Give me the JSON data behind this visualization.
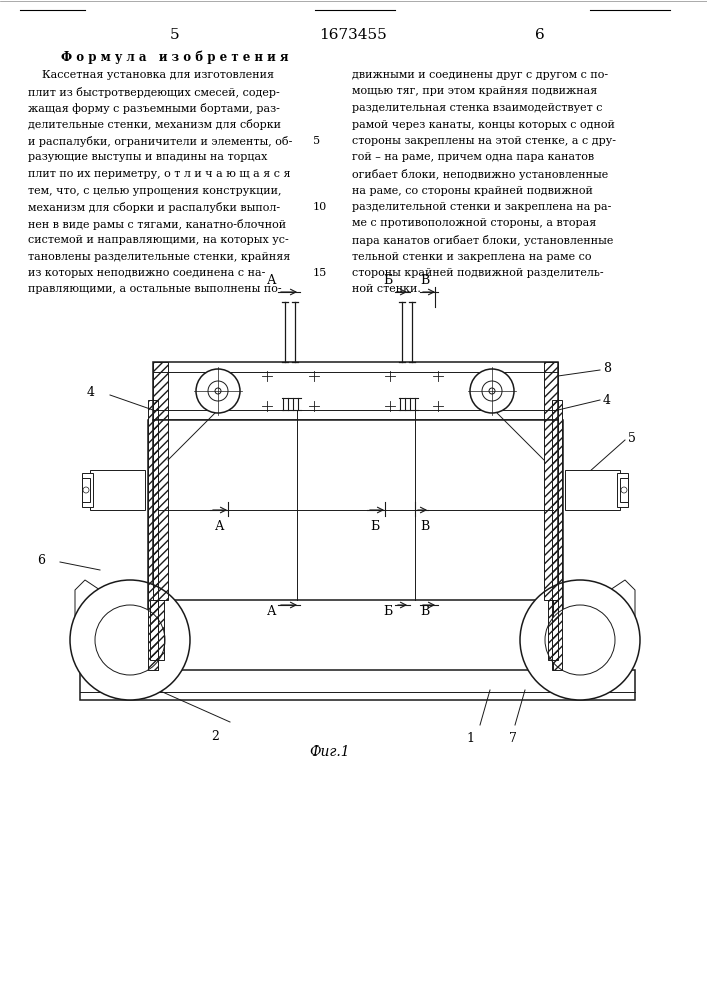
{
  "page_number_left": "5",
  "page_number_center": "1673455",
  "page_number_right": "6",
  "formula_title": "Ф о р м у л а   и з о б р е т е н и я",
  "left_col_lines": [
    "    Кассетная установка для изготовления",
    "плит из быстротвердеющих смесей, содер-",
    "жащая форму с разъемными бортами, раз-",
    "делительные стенки, механизм для сборки",
    "и распалубки, ограничители и элементы, об-",
    "разующие выступы и впадины на торцах",
    "плит по их периметру, о т л и ч а ю щ а я с я",
    "тем, что, с целью упрощения конструкции,",
    "механизм для сборки и распалубки выпол-",
    "нен в виде рамы с тягами, канатно-блочной",
    "системой и направляющими, на которых ус-",
    "тановлены разделительные стенки, крайняя",
    "из которых неподвижно соединена с на-",
    "правляющими, а остальные выполнены по-"
  ],
  "line_num": "15",
  "right_col_lines": [
    "движными и соединены друг с другом с по-",
    "мощью тяг, при этом крайняя подвижная",
    "разделительная стенка взаимодействует с",
    "рамой через канаты, концы которых с одной",
    "стороны закреплены на этой стенке, а с дру-",
    "гой – на раме, причем одна пара канатов",
    "огибает блоки, неподвижно установленные",
    "на раме, со стороны крайней подвижной",
    "разделительной стенки и закреплена на ра-",
    "ме с противоположной стороны, а вторая",
    "пара канатов огибает блоки, установленные",
    "тельной стенки и закреплена на раме со",
    "стороны крайней подвижной разделитель-",
    "ной стенки."
  ],
  "fig_label": "Фиг.1",
  "bg_color": "#ffffff",
  "lc": "#1a1a1a"
}
